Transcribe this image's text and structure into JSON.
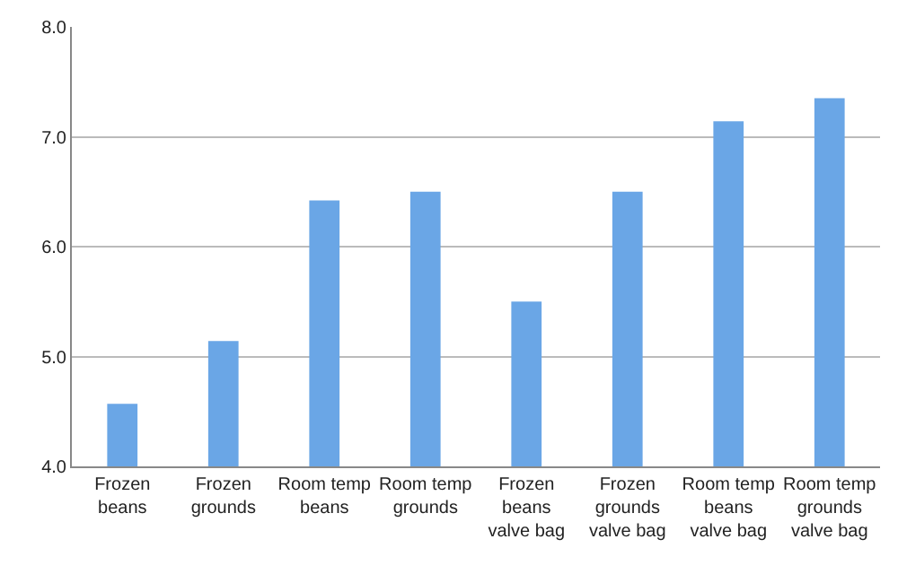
{
  "chart_data": {
    "type": "bar",
    "categories": [
      "Frozen beans",
      "Frozen grounds",
      "Room temp beans",
      "Room temp grounds",
      "Frozen beans valve bag",
      "Frozen grounds valve bag",
      "Room temp beans valve bag",
      "Room temp grounds valve bag"
    ],
    "values": [
      4.57,
      5.14,
      6.42,
      6.5,
      5.5,
      6.5,
      7.14,
      7.35
    ],
    "color": "#6aa6e6",
    "ylim": [
      4,
      8
    ],
    "yticks": [
      {
        "value": 4,
        "label": "4.0"
      },
      {
        "value": 5,
        "label": "5.0"
      },
      {
        "value": 6,
        "label": "6.0"
      },
      {
        "value": 7,
        "label": "7.0"
      },
      {
        "value": 8,
        "label": "8.0"
      }
    ],
    "grid": "y"
  }
}
